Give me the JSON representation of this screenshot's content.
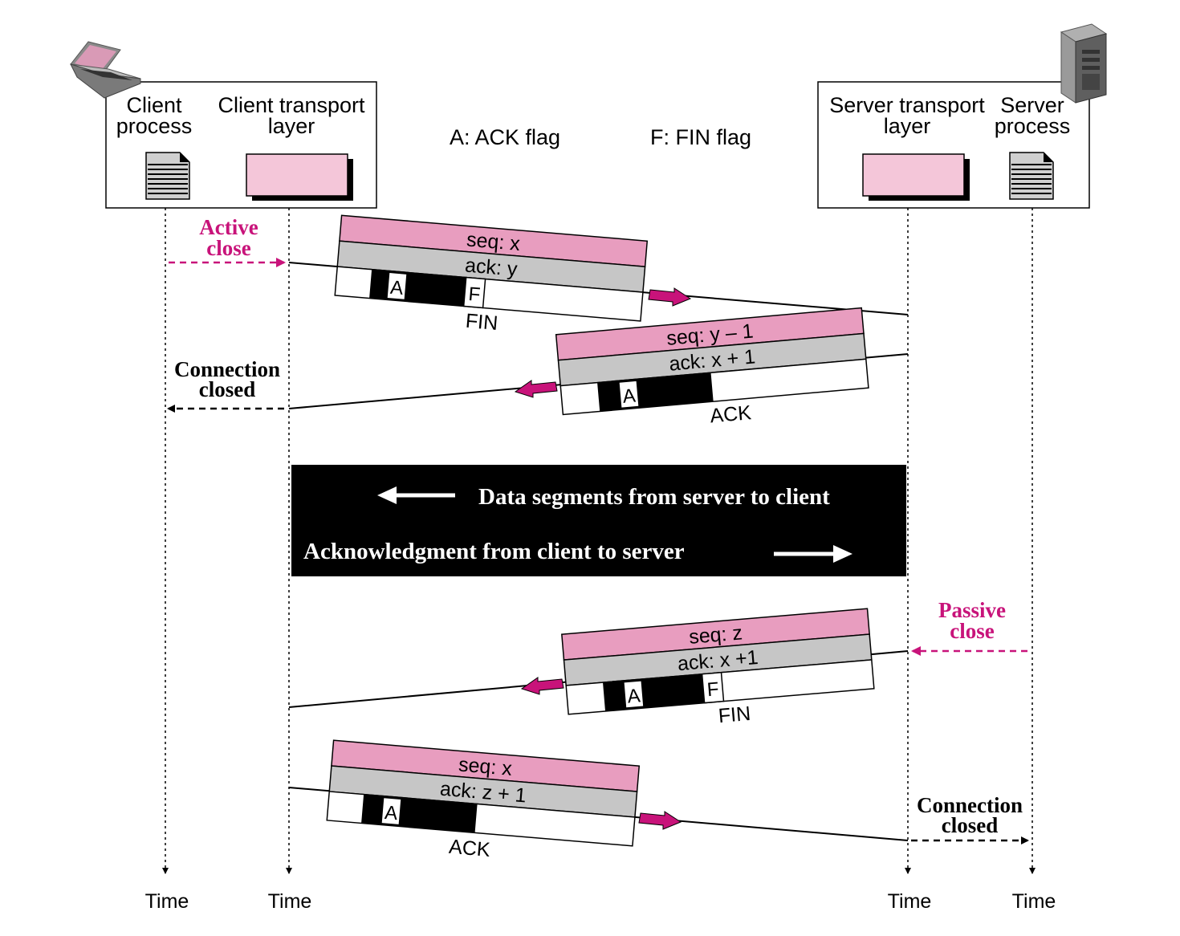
{
  "legend": {
    "ack_flag": "A: ACK flag",
    "fin_flag": "F: FIN flag"
  },
  "client": {
    "process_line1": "Client",
    "process_line2": "process",
    "transport_line1": "Client transport",
    "transport_line2": "layer"
  },
  "server": {
    "transport_line1": "Server transport",
    "transport_line2": "layer",
    "process_line1": "Server",
    "process_line2": "process"
  },
  "time_label": "Time",
  "active_close": {
    "line1": "Active",
    "line2": "close"
  },
  "passive_close": {
    "line1": "Passive",
    "line2": "close"
  },
  "connection_closed": {
    "line1": "Connection",
    "line2": "closed"
  },
  "flags": {
    "ack": "A",
    "fin": "F"
  },
  "segments": [
    {
      "seq": "seq: x",
      "ack": "ack: y",
      "type": "FIN"
    },
    {
      "seq": "seq: y – 1",
      "ack": "ack: x + 1",
      "type": "ACK"
    },
    {
      "seq": "seq: z",
      "ack": "ack: x +1",
      "type": "FIN"
    },
    {
      "seq": "seq: x",
      "ack": "ack: z + 1",
      "type": "ACK"
    }
  ],
  "data_box": {
    "line1": "Data segments from server to client",
    "line2": "Acknowledgment from client to server"
  },
  "colors": {
    "pink": "#e89dbf",
    "light_pink": "#f4c6d9",
    "gray": "#c6c6c6",
    "magenta": "#c8137a",
    "black": "#000000"
  }
}
